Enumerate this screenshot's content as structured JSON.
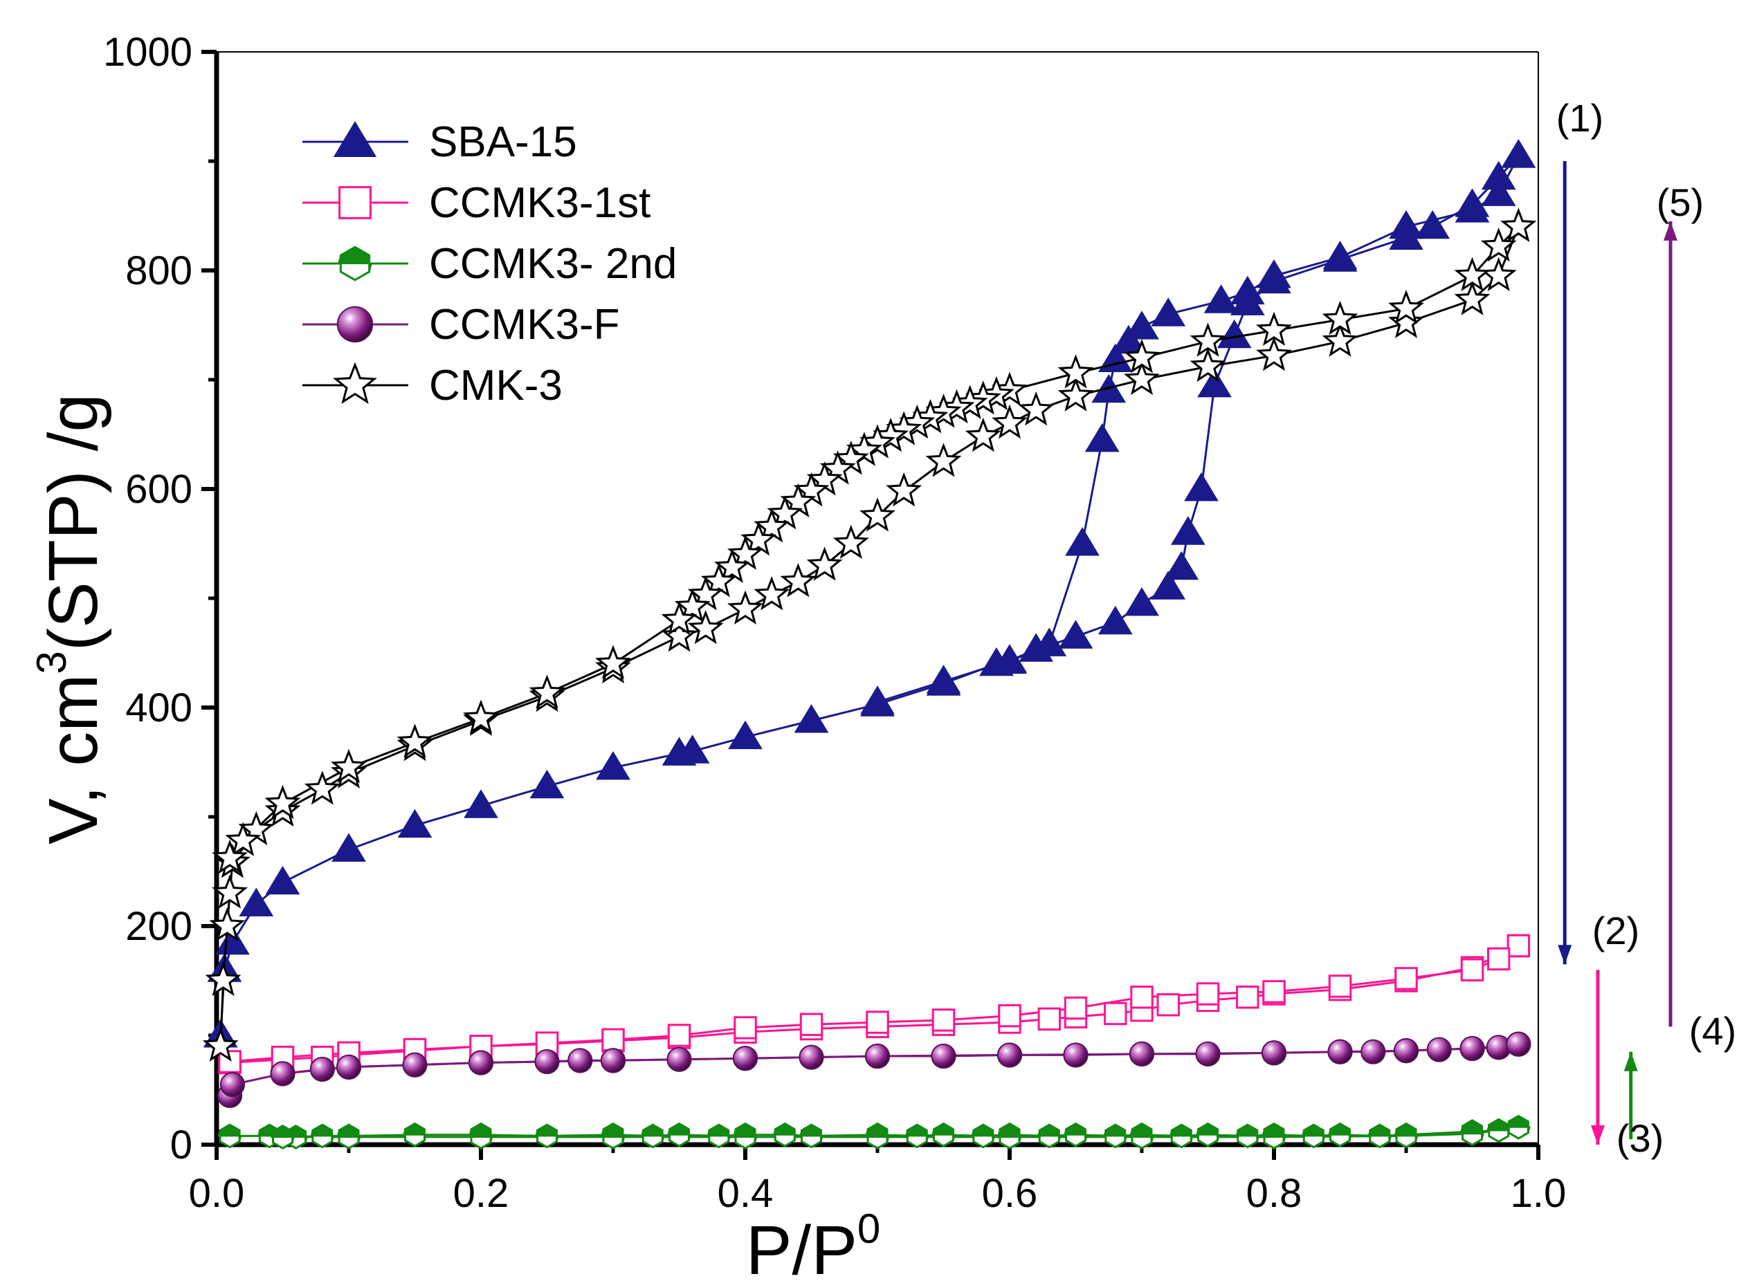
{
  "chart_data": {
    "type": "line",
    "xlabel": "P/P",
    "xlabel_sup": "0",
    "ylabel_pre": "V, cm",
    "ylabel_sup": "3",
    "ylabel_post": "(STP) /g",
    "xlim": [
      0.0,
      1.0
    ],
    "ylim": [
      0,
      1000
    ],
    "xticks": [
      "0.0",
      "0.2",
      "0.4",
      "0.6",
      "0.8",
      "1.0"
    ],
    "yticks": [
      "0",
      "200",
      "400",
      "600",
      "800",
      "1000"
    ],
    "grid": false,
    "legend_position": "top-left",
    "series": [
      {
        "name": "SBA-15",
        "color": "#1a1a8c",
        "marker": "triangle",
        "adsorption": [
          [
            0.003,
            100
          ],
          [
            0.006,
            160
          ],
          [
            0.012,
            185
          ],
          [
            0.03,
            220
          ],
          [
            0.05,
            240
          ],
          [
            0.1,
            270
          ],
          [
            0.15,
            292
          ],
          [
            0.2,
            310
          ],
          [
            0.25,
            328
          ],
          [
            0.3,
            345
          ],
          [
            0.35,
            358
          ],
          [
            0.36,
            360
          ],
          [
            0.4,
            373
          ],
          [
            0.45,
            388
          ],
          [
            0.5,
            403
          ],
          [
            0.55,
            422
          ],
          [
            0.59,
            440
          ],
          [
            0.6,
            442
          ],
          [
            0.62,
            453
          ],
          [
            0.65,
            465
          ],
          [
            0.68,
            478
          ],
          [
            0.7,
            495
          ],
          [
            0.72,
            510
          ],
          [
            0.73,
            528
          ],
          [
            0.735,
            560
          ],
          [
            0.745,
            600
          ],
          [
            0.755,
            695
          ],
          [
            0.77,
            740
          ],
          [
            0.78,
            770
          ],
          [
            0.8,
            790
          ],
          [
            0.85,
            810
          ],
          [
            0.9,
            830
          ],
          [
            0.92,
            840
          ],
          [
            0.95,
            860
          ],
          [
            0.97,
            885
          ],
          [
            0.985,
            905
          ]
        ],
        "desorption": [
          [
            0.985,
            905
          ],
          [
            0.97,
            870
          ],
          [
            0.95,
            855
          ],
          [
            0.9,
            840
          ],
          [
            0.85,
            812
          ],
          [
            0.8,
            795
          ],
          [
            0.78,
            780
          ],
          [
            0.76,
            772
          ],
          [
            0.72,
            760
          ],
          [
            0.7,
            748
          ],
          [
            0.69,
            735
          ],
          [
            0.68,
            718
          ],
          [
            0.675,
            690
          ],
          [
            0.67,
            645
          ],
          [
            0.655,
            550
          ],
          [
            0.63,
            458
          ],
          [
            0.6,
            443
          ],
          [
            0.55,
            424
          ],
          [
            0.5,
            405
          ]
        ]
      },
      {
        "name": "CCMK3-1st",
        "color": "#ff1493",
        "marker": "square-open",
        "adsorption": [
          [
            0.01,
            75
          ],
          [
            0.05,
            78
          ],
          [
            0.08,
            80
          ],
          [
            0.1,
            82
          ],
          [
            0.15,
            86
          ],
          [
            0.2,
            90
          ],
          [
            0.25,
            92
          ],
          [
            0.3,
            95
          ],
          [
            0.35,
            98
          ],
          [
            0.4,
            103
          ],
          [
            0.45,
            106
          ],
          [
            0.5,
            108
          ],
          [
            0.55,
            110
          ],
          [
            0.6,
            112
          ],
          [
            0.63,
            115
          ],
          [
            0.65,
            117
          ],
          [
            0.68,
            120
          ],
          [
            0.7,
            123
          ],
          [
            0.72,
            128
          ],
          [
            0.75,
            132
          ],
          [
            0.78,
            135
          ],
          [
            0.8,
            138
          ],
          [
            0.85,
            142
          ],
          [
            0.9,
            150
          ],
          [
            0.95,
            162
          ],
          [
            0.985,
            182
          ]
        ],
        "desorption": [
          [
            0.985,
            182
          ],
          [
            0.97,
            170
          ],
          [
            0.95,
            160
          ],
          [
            0.9,
            152
          ],
          [
            0.85,
            145
          ],
          [
            0.8,
            140
          ],
          [
            0.75,
            138
          ],
          [
            0.7,
            135
          ],
          [
            0.65,
            125
          ],
          [
            0.6,
            118
          ],
          [
            0.55,
            114
          ],
          [
            0.5,
            112
          ],
          [
            0.45,
            110
          ],
          [
            0.4,
            107
          ],
          [
            0.35,
            100
          ],
          [
            0.3,
            96
          ],
          [
            0.25,
            93
          ],
          [
            0.2,
            90
          ],
          [
            0.15,
            87
          ],
          [
            0.1,
            84
          ],
          [
            0.05,
            80
          ],
          [
            0.01,
            76
          ]
        ]
      },
      {
        "name": "CCMK3- 2nd",
        "color": "#138a13",
        "marker": "hexagon-half",
        "adsorption": [
          [
            0.01,
            8
          ],
          [
            0.04,
            8
          ],
          [
            0.06,
            7
          ],
          [
            0.08,
            8
          ],
          [
            0.1,
            8
          ],
          [
            0.15,
            9
          ],
          [
            0.2,
            9
          ],
          [
            0.25,
            8
          ],
          [
            0.3,
            9
          ],
          [
            0.33,
            8
          ],
          [
            0.35,
            9
          ],
          [
            0.38,
            8
          ],
          [
            0.4,
            9
          ],
          [
            0.43,
            9
          ],
          [
            0.45,
            8
          ],
          [
            0.5,
            9
          ],
          [
            0.53,
            8
          ],
          [
            0.55,
            9
          ],
          [
            0.58,
            8
          ],
          [
            0.6,
            9
          ],
          [
            0.63,
            8
          ],
          [
            0.65,
            9
          ],
          [
            0.68,
            8
          ],
          [
            0.7,
            9
          ],
          [
            0.73,
            8
          ],
          [
            0.75,
            9
          ],
          [
            0.78,
            8
          ],
          [
            0.8,
            9
          ],
          [
            0.83,
            8
          ],
          [
            0.85,
            9
          ],
          [
            0.88,
            8
          ],
          [
            0.9,
            9
          ],
          [
            0.95,
            12
          ],
          [
            0.97,
            13
          ],
          [
            0.985,
            16
          ]
        ],
        "desorption": [
          [
            0.985,
            16
          ],
          [
            0.95,
            10
          ],
          [
            0.9,
            8
          ],
          [
            0.8,
            7
          ],
          [
            0.7,
            7
          ],
          [
            0.6,
            7
          ],
          [
            0.5,
            7
          ],
          [
            0.4,
            7
          ],
          [
            0.3,
            7
          ],
          [
            0.2,
            7
          ],
          [
            0.1,
            7
          ],
          [
            0.05,
            7
          ]
        ]
      },
      {
        "name": "CCMK3-F",
        "color": "#7b1a7b",
        "marker": "sphere",
        "adsorption": [
          [
            0.01,
            45
          ],
          [
            0.012,
            55
          ],
          [
            0.05,
            65
          ],
          [
            0.08,
            69
          ],
          [
            0.1,
            71
          ],
          [
            0.15,
            73
          ],
          [
            0.2,
            75
          ],
          [
            0.25,
            76
          ],
          [
            0.275,
            77
          ],
          [
            0.3,
            77
          ],
          [
            0.35,
            78
          ],
          [
            0.4,
            79
          ],
          [
            0.45,
            80
          ],
          [
            0.5,
            81
          ],
          [
            0.55,
            81
          ],
          [
            0.6,
            82
          ],
          [
            0.65,
            82
          ],
          [
            0.7,
            83
          ],
          [
            0.75,
            83
          ],
          [
            0.8,
            84
          ],
          [
            0.85,
            85
          ],
          [
            0.875,
            85
          ],
          [
            0.9,
            86
          ],
          [
            0.925,
            87
          ],
          [
            0.95,
            88
          ],
          [
            0.97,
            89
          ],
          [
            0.985,
            92
          ]
        ],
        "desorption": [
          [
            0.985,
            92
          ],
          [
            0.95,
            88
          ],
          [
            0.9,
            86
          ],
          [
            0.85,
            85
          ],
          [
            0.8,
            84
          ],
          [
            0.7,
            83
          ],
          [
            0.6,
            82
          ],
          [
            0.5,
            81
          ],
          [
            0.4,
            79
          ],
          [
            0.3,
            77
          ],
          [
            0.2,
            75
          ],
          [
            0.1,
            71
          ],
          [
            0.05,
            65
          ]
        ]
      },
      {
        "name": "CMK-3",
        "color": "#000000",
        "marker": "star-open",
        "adsorption": [
          [
            0.003,
            90
          ],
          [
            0.005,
            150
          ],
          [
            0.008,
            200
          ],
          [
            0.01,
            230
          ],
          [
            0.012,
            258
          ],
          [
            0.03,
            288
          ],
          [
            0.05,
            305
          ],
          [
            0.08,
            325
          ],
          [
            0.1,
            340
          ],
          [
            0.15,
            365
          ],
          [
            0.2,
            388
          ],
          [
            0.25,
            410
          ],
          [
            0.3,
            436
          ],
          [
            0.35,
            465
          ],
          [
            0.37,
            472
          ],
          [
            0.4,
            490
          ],
          [
            0.42,
            503
          ],
          [
            0.44,
            515
          ],
          [
            0.46,
            530
          ],
          [
            0.48,
            550
          ],
          [
            0.5,
            575
          ],
          [
            0.52,
            598
          ],
          [
            0.55,
            625
          ],
          [
            0.58,
            648
          ],
          [
            0.6,
            660
          ],
          [
            0.62,
            672
          ],
          [
            0.65,
            685
          ],
          [
            0.7,
            700
          ],
          [
            0.75,
            712
          ],
          [
            0.8,
            722
          ],
          [
            0.85,
            735
          ],
          [
            0.9,
            752
          ],
          [
            0.95,
            773
          ],
          [
            0.97,
            795
          ],
          [
            0.985,
            840
          ]
        ],
        "desorption": [
          [
            0.985,
            840
          ],
          [
            0.97,
            822
          ],
          [
            0.95,
            795
          ],
          [
            0.9,
            765
          ],
          [
            0.85,
            755
          ],
          [
            0.8,
            745
          ],
          [
            0.75,
            735
          ],
          [
            0.7,
            720
          ],
          [
            0.65,
            706
          ],
          [
            0.6,
            690
          ],
          [
            0.59,
            686
          ],
          [
            0.58,
            682
          ],
          [
            0.57,
            678
          ],
          [
            0.56,
            674
          ],
          [
            0.55,
            670
          ],
          [
            0.54,
            665
          ],
          [
            0.53,
            660
          ],
          [
            0.52,
            654
          ],
          [
            0.51,
            648
          ],
          [
            0.5,
            642
          ],
          [
            0.49,
            635
          ],
          [
            0.48,
            627
          ],
          [
            0.47,
            618
          ],
          [
            0.46,
            608
          ],
          [
            0.45,
            598
          ],
          [
            0.44,
            588
          ],
          [
            0.43,
            577
          ],
          [
            0.42,
            565
          ],
          [
            0.41,
            553
          ],
          [
            0.4,
            540
          ],
          [
            0.39,
            528
          ],
          [
            0.38,
            515
          ],
          [
            0.37,
            503
          ],
          [
            0.36,
            492
          ],
          [
            0.35,
            480
          ],
          [
            0.3,
            440
          ],
          [
            0.25,
            413
          ],
          [
            0.2,
            390
          ],
          [
            0.15,
            368
          ],
          [
            0.1,
            345
          ],
          [
            0.05,
            312
          ],
          [
            0.02,
            278
          ],
          [
            0.01,
            262
          ]
        ]
      }
    ],
    "annotations": [
      {
        "label": "(1)",
        "color": "#1a1a8c",
        "x": 1.02,
        "y_from": 900,
        "y_to": 165
      },
      {
        "label": "(2)",
        "color": "#ff1493",
        "x": 1.045,
        "y_from": 160,
        "y_to": 0
      },
      {
        "label": "(3)",
        "color": "#138a13",
        "x": 1.07,
        "y_from": 5,
        "y_to": 85
      },
      {
        "label": "(4)",
        "color": "#7b1a7b",
        "x": 1.1,
        "y_from": 108,
        "y_to": 845
      },
      {
        "label": "(5)",
        "color": "#7b1a7b",
        "x": 1.1,
        "y_from": 845,
        "y_to": 845
      }
    ]
  }
}
